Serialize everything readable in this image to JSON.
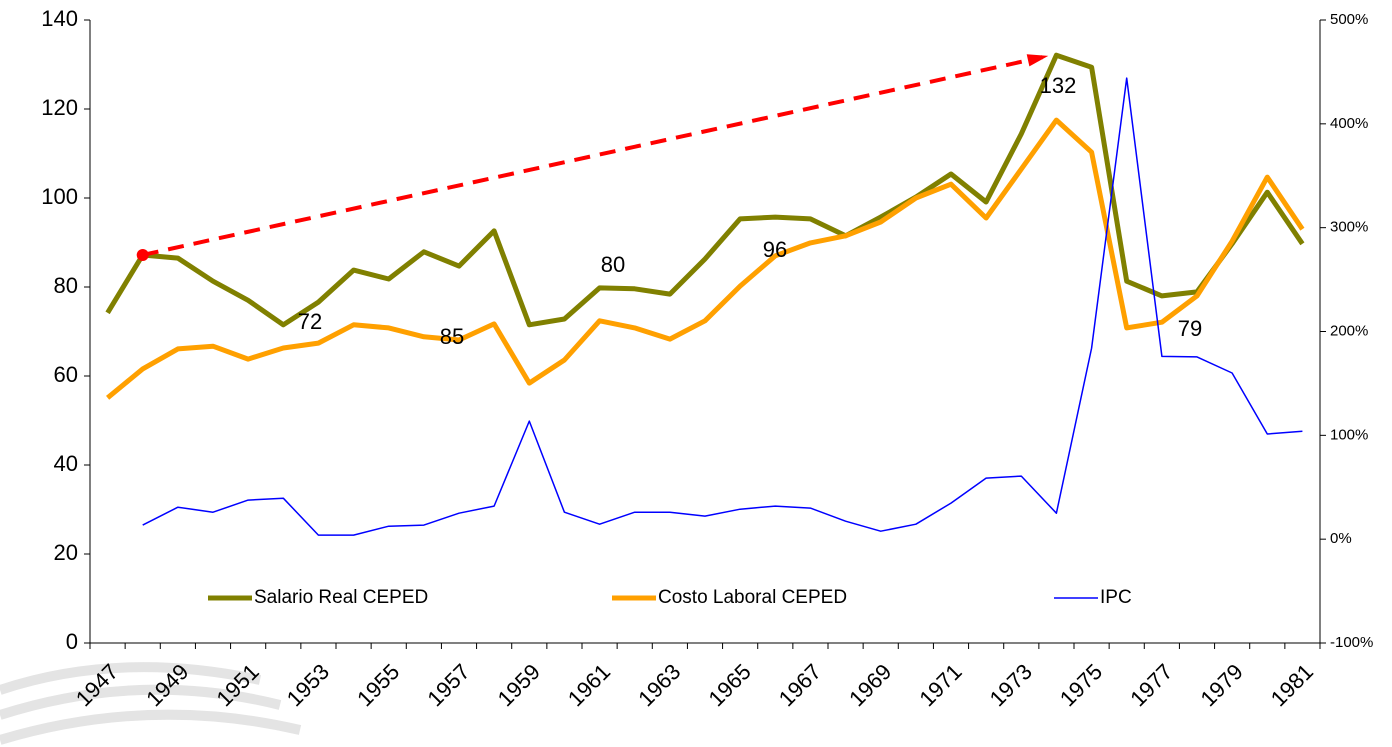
{
  "chart_data": {
    "type": "line",
    "categories": [
      "1947",
      null,
      "1949",
      null,
      "1951",
      null,
      "1953",
      null,
      "1955",
      null,
      "1957",
      null,
      "1959",
      null,
      "1961",
      null,
      "1963",
      null,
      "1965",
      null,
      "1967",
      null,
      "1969",
      null,
      "1971",
      null,
      "1973",
      null,
      "1975",
      null,
      "1977",
      null,
      "1979",
      null,
      "1981"
    ],
    "series": [
      {
        "name": "Salario Real CEPED",
        "color": "#808000",
        "values": [
          74.2,
          87.2,
          86.5,
          81.3,
          77,
          71.5,
          76.6,
          83.8,
          81.8,
          87.9,
          84.7,
          92.6,
          71.5,
          72.8,
          79.8,
          79.6,
          78.4,
          86.3,
          95.3,
          95.7,
          95.3,
          91.5,
          95.7,
          100.2,
          105.4,
          99.1,
          114.4,
          132.1,
          129.4,
          81.3,
          78,
          78.9,
          89.7,
          101.3,
          89.7
        ]
      },
      {
        "name": "Costo Laboral CEPED",
        "color": "#ffa000",
        "values": [
          55.1,
          61.6,
          66.1,
          66.7,
          63.8,
          66.3,
          67.4,
          71.5,
          70.8,
          68.8,
          68.1,
          71.7,
          58.4,
          63.6,
          72.4,
          70.8,
          68.3,
          72.4,
          80.2,
          87,
          89.9,
          91.5,
          94.6,
          100,
          103.1,
          95.5,
          106.5,
          117.5,
          110.3,
          70.8,
          72.1,
          78,
          90.3,
          104.7,
          93
        ]
      },
      {
        "name": "IPC",
        "color": "#0000ff",
        "axis": "y2",
        "values": [
          null,
          13.5,
          30.8,
          26,
          37.6,
          39.5,
          3.9,
          3.9,
          12.5,
          13.5,
          25,
          31.8,
          113.7,
          26,
          14.4,
          26,
          26,
          22.2,
          28.9,
          31.8,
          29.9,
          17.3,
          7.7,
          14.4,
          34.7,
          58.8,
          60.7,
          25,
          184,
          444,
          176,
          175.5,
          160,
          101.3,
          104
        ]
      }
    ],
    "ylim": [
      0,
      140
    ],
    "yticks": [
      0,
      20,
      40,
      60,
      80,
      100,
      120,
      140
    ],
    "y2lim": [
      -100,
      500
    ],
    "y2ticks": [
      {
        "value": -100,
        "label": "-100%"
      },
      {
        "value": 0,
        "label": "0%"
      },
      {
        "value": 100,
        "label": "100%"
      },
      {
        "value": 200,
        "label": "200%"
      },
      {
        "value": 300,
        "label": "300%"
      },
      {
        "value": 400,
        "label": "400%"
      },
      {
        "value": 500,
        "label": "500%"
      }
    ],
    "annotations": [
      "72",
      "85",
      "80",
      "96",
      "132",
      "79"
    ],
    "legend": "lower center",
    "grid": false
  }
}
